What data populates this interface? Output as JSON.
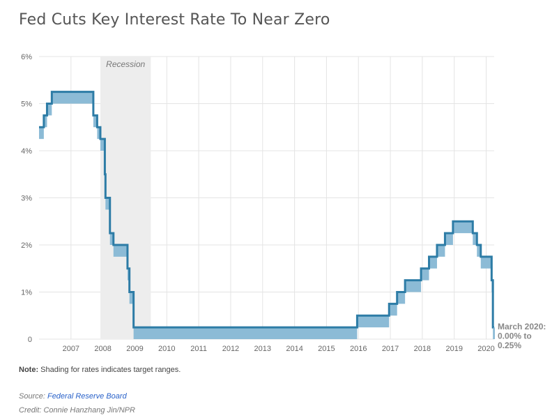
{
  "title": "Fed Cuts Key Interest Rate To Near Zero",
  "note": {
    "label": "Note:",
    "text": " Shading for rates indicates target ranges."
  },
  "source": {
    "label": "Source: ",
    "link_text": "Federal Reserve Board"
  },
  "credit": "Credit: Connie Hanzhang Jin/NPR",
  "colors": {
    "line": "#2d7ca6",
    "band": "#8cbbd6",
    "recession": "#ededed",
    "grid": "#e4e4e4"
  },
  "chart_data": {
    "type": "line",
    "title": "Fed Cuts Key Interest Rate To Near Zero",
    "xlabel": "",
    "ylabel": "",
    "xlim": [
      2006.0,
      2020.25
    ],
    "ylim": [
      0,
      6
    ],
    "y_ticks": [
      0,
      1,
      2,
      3,
      4,
      5,
      6
    ],
    "y_tick_labels": [
      "0",
      "1%",
      "2%",
      "3%",
      "4%",
      "5%",
      "6%"
    ],
    "x_ticks": [
      2007,
      2008,
      2009,
      2010,
      2011,
      2012,
      2013,
      2014,
      2015,
      2016,
      2017,
      2018,
      2019,
      2020
    ],
    "x_tick_labels": [
      "2007",
      "2008",
      "2009",
      "2010",
      "2011",
      "2012",
      "2013",
      "2014",
      "2015",
      "2016",
      "2017",
      "2018",
      "2019",
      "2020"
    ],
    "grid": true,
    "recession": {
      "label": "Recession",
      "start": 2007.92,
      "end": 2009.5
    },
    "steps": [
      {
        "x": 2006.0,
        "y": 4.5
      },
      {
        "x": 2006.15,
        "y": 4.75
      },
      {
        "x": 2006.25,
        "y": 5.0
      },
      {
        "x": 2006.4,
        "y": 5.25
      },
      {
        "x": 2007.7,
        "y": 4.75
      },
      {
        "x": 2007.82,
        "y": 4.5
      },
      {
        "x": 2007.92,
        "y": 4.25
      },
      {
        "x": 2008.06,
        "y": 3.5
      },
      {
        "x": 2008.08,
        "y": 3.0
      },
      {
        "x": 2008.22,
        "y": 2.25
      },
      {
        "x": 2008.33,
        "y": 2.0
      },
      {
        "x": 2008.77,
        "y": 1.5
      },
      {
        "x": 2008.83,
        "y": 1.0
      },
      {
        "x": 2008.96,
        "y": 0.25
      },
      {
        "x": 2015.96,
        "y": 0.5
      },
      {
        "x": 2016.96,
        "y": 0.75
      },
      {
        "x": 2017.21,
        "y": 1.0
      },
      {
        "x": 2017.46,
        "y": 1.25
      },
      {
        "x": 2017.96,
        "y": 1.5
      },
      {
        "x": 2018.21,
        "y": 1.75
      },
      {
        "x": 2018.46,
        "y": 2.0
      },
      {
        "x": 2018.71,
        "y": 2.25
      },
      {
        "x": 2018.96,
        "y": 2.5
      },
      {
        "x": 2019.58,
        "y": 2.25
      },
      {
        "x": 2019.71,
        "y": 2.0
      },
      {
        "x": 2019.83,
        "y": 1.75
      },
      {
        "x": 2020.17,
        "y": 1.25
      },
      {
        "x": 2020.21,
        "y": 0.25
      },
      {
        "x": 2020.25,
        "y": 0.25
      }
    ],
    "annotation": {
      "lines": [
        "March 2020:",
        "0.00% to",
        "0.25%"
      ]
    }
  }
}
